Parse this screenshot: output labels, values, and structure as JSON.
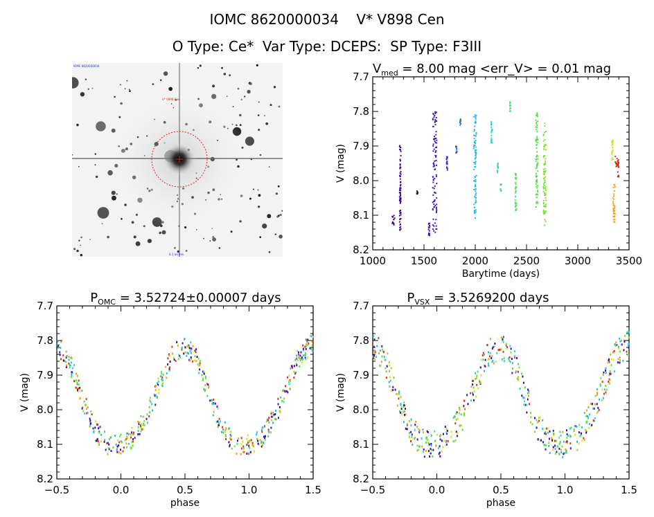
{
  "header": {
    "line1": "IOMC 8620000034    V* V898 Cen",
    "line2": "O Type: Ce*  Var Type: DCEPS:  SP Type: F3III"
  },
  "thumbnail": {
    "corner_label": "IOMC 8620000034",
    "marker_label": "V* V898 Cen",
    "bottom_label": "4.1 arcmin",
    "marker_color": "#d62020",
    "background": "#ffffff"
  },
  "chart_data": [
    {
      "type": "scatter",
      "title_main": "V",
      "title_sub": "med",
      "title_rest": " = 8.00 mag <err_V> = 0.01 mag",
      "xlabel": "Barytime (days)",
      "ylabel": "V (mag)",
      "xlim": [
        1000,
        3500
      ],
      "ylim": [
        8.2,
        7.7
      ],
      "xticks": [
        "1000",
        "1500",
        "2000",
        "2500",
        "3000",
        "3500"
      ],
      "yticks": [
        "7.7",
        "7.8",
        "7.9",
        "8.0",
        "8.1",
        "8.2"
      ],
      "xtick_values": [
        1000,
        1500,
        2000,
        2500,
        3000,
        3500
      ],
      "ytick_values": [
        7.7,
        7.8,
        7.9,
        8.0,
        8.1,
        8.2
      ],
      "colors": "time-ordered rainbow: purple → blue → cyan → green → yellow → orange → red",
      "segments": [
        {
          "t0": 1190,
          "t1": 1215,
          "ymin": 8.1,
          "ymax": 8.13,
          "color": "#3b0a8c"
        },
        {
          "t0": 1262,
          "t1": 1275,
          "ymin": 7.89,
          "ymax": 8.15,
          "color": "#3b0a8c"
        },
        {
          "t0": 1430,
          "t1": 1440,
          "ymin": 8.03,
          "ymax": 8.04,
          "color": "#3b0a8c"
        },
        {
          "t0": 1545,
          "t1": 1560,
          "ymin": 8.12,
          "ymax": 8.16,
          "color": "#3d10b8"
        },
        {
          "t0": 1585,
          "t1": 1625,
          "ymin": 7.8,
          "ymax": 8.16,
          "color": "#3a16c8"
        },
        {
          "t0": 1720,
          "t1": 1730,
          "ymin": 7.93,
          "ymax": 7.97,
          "color": "#2b2ad0"
        },
        {
          "t0": 1810,
          "t1": 1820,
          "ymin": 7.9,
          "ymax": 7.92,
          "color": "#1a5ad8"
        },
        {
          "t0": 1850,
          "t1": 1860,
          "ymin": 7.82,
          "ymax": 7.84,
          "color": "#1a7ad8"
        },
        {
          "t0": 1985,
          "t1": 2010,
          "ymin": 7.81,
          "ymax": 8.12,
          "color": "#22b8e0"
        },
        {
          "t0": 2155,
          "t1": 2165,
          "ymin": 7.83,
          "ymax": 7.9,
          "color": "#2ad0d0"
        },
        {
          "t0": 2215,
          "t1": 2225,
          "ymin": 7.95,
          "ymax": 7.98,
          "color": "#30d8b0"
        },
        {
          "t0": 2245,
          "t1": 2255,
          "ymin": 8.01,
          "ymax": 8.03,
          "color": "#38d890"
        },
        {
          "t0": 2335,
          "t1": 2345,
          "ymin": 7.77,
          "ymax": 7.8,
          "color": "#48e070"
        },
        {
          "t0": 2390,
          "t1": 2402,
          "ymin": 7.98,
          "ymax": 8.09,
          "color": "#48e060"
        },
        {
          "t0": 2590,
          "t1": 2610,
          "ymin": 7.8,
          "ymax": 8.08,
          "color": "#50e040"
        },
        {
          "t0": 2665,
          "t1": 2690,
          "ymin": 7.83,
          "ymax": 8.13,
          "color": "#80e030"
        },
        {
          "t0": 3330,
          "t1": 3345,
          "ymin": 7.88,
          "ymax": 7.95,
          "color": "#d8e020"
        },
        {
          "t0": 3345,
          "t1": 3365,
          "ymin": 8.01,
          "ymax": 8.12,
          "color": "#f0a010"
        },
        {
          "t0": 3365,
          "t1": 3385,
          "ymin": 7.93,
          "ymax": 7.96,
          "color": "#e03018"
        },
        {
          "t0": 3390,
          "t1": 3400,
          "ymin": 7.94,
          "ymax": 7.99,
          "color": "#d02010"
        }
      ]
    },
    {
      "type": "scatter",
      "title_main": "P",
      "title_sub": "OMC",
      "title_rest": " = 3.52724±0.00007 days",
      "xlabel": "phase",
      "ylabel": "V (mag)",
      "xlim": [
        -0.5,
        1.5
      ],
      "ylim": [
        8.2,
        7.7
      ],
      "xticks": [
        "−0.5",
        "0.0",
        "0.5",
        "1.0",
        "1.5"
      ],
      "yticks": [
        "7.7",
        "7.8",
        "7.9",
        "8.0",
        "8.1",
        "8.2"
      ],
      "xtick_values": [
        -0.5,
        0.0,
        0.5,
        1.0,
        1.5
      ],
      "ytick_values": [
        7.7,
        7.8,
        7.9,
        8.0,
        8.1,
        8.2
      ],
      "light_curve": {
        "phase": [
          0.0,
          0.1,
          0.2,
          0.3,
          0.4,
          0.5,
          0.6,
          0.7,
          0.8,
          0.9,
          1.0
        ],
        "V": [
          8.1,
          8.08,
          8.02,
          7.93,
          7.84,
          7.81,
          7.86,
          7.97,
          8.06,
          8.1,
          8.1
        ]
      },
      "scatter_amplitude": 0.03
    },
    {
      "type": "scatter",
      "title_main": "P",
      "title_sub": "VSX",
      "title_rest": " = 3.5269200 days",
      "xlabel": "phase",
      "ylabel": "V (mag)",
      "xlim": [
        -0.5,
        1.5
      ],
      "ylim": [
        8.2,
        7.7
      ],
      "xticks": [
        "−0.5",
        "0.0",
        "0.5",
        "1.0",
        "1.5"
      ],
      "yticks": [
        "7.7",
        "7.8",
        "7.9",
        "8.0",
        "8.1",
        "8.2"
      ],
      "xtick_values": [
        -0.5,
        0.0,
        0.5,
        1.0,
        1.5
      ],
      "ytick_values": [
        7.7,
        7.8,
        7.9,
        8.0,
        8.1,
        8.2
      ],
      "light_curve": {
        "phase": [
          0.0,
          0.1,
          0.2,
          0.3,
          0.4,
          0.5,
          0.6,
          0.7,
          0.8,
          0.9,
          1.0
        ],
        "V": [
          8.1,
          8.08,
          8.02,
          7.93,
          7.84,
          7.81,
          7.86,
          7.97,
          8.06,
          8.1,
          8.1
        ]
      },
      "scatter_amplitude": 0.04
    }
  ],
  "palette": [
    "#3b0a8c",
    "#3a16c8",
    "#22b8e0",
    "#2ad0d0",
    "#50e040",
    "#80e030",
    "#d8e020",
    "#f0a010",
    "#e03018"
  ]
}
